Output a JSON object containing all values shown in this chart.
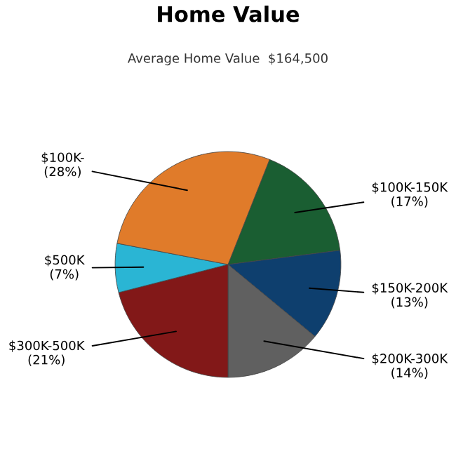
{
  "chart_data": {
    "type": "pie",
    "title": "Home Value",
    "subtitle": "Average Home Value  $164,500",
    "categories": [
      "$100K-150K",
      "$150K-200K",
      "$200K-300K",
      "$300K-500K",
      "$500K",
      "$100K-"
    ],
    "values": [
      17,
      13,
      14,
      21,
      7,
      28
    ],
    "value_labels": [
      "(17%)",
      "(13%)",
      "(14%)",
      "(21%)",
      "(7%)",
      "(28%)"
    ],
    "colors": [
      "#1a5e32",
      "#0e3f6e",
      "#606060",
      "#821818",
      "#2ab5d4",
      "#e07b2a"
    ]
  }
}
